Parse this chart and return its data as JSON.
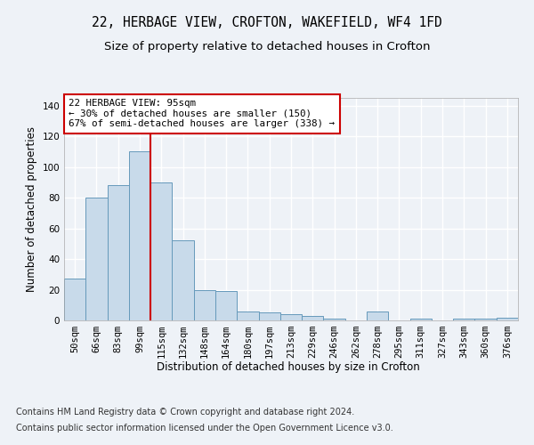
{
  "title_line1": "22, HERBAGE VIEW, CROFTON, WAKEFIELD, WF4 1FD",
  "title_line2": "Size of property relative to detached houses in Crofton",
  "xlabel": "Distribution of detached houses by size in Crofton",
  "ylabel": "Number of detached properties",
  "categories": [
    "50sqm",
    "66sqm",
    "83sqm",
    "99sqm",
    "115sqm",
    "132sqm",
    "148sqm",
    "164sqm",
    "180sqm",
    "197sqm",
    "213sqm",
    "229sqm",
    "246sqm",
    "262sqm",
    "278sqm",
    "295sqm",
    "311sqm",
    "327sqm",
    "343sqm",
    "360sqm",
    "376sqm"
  ],
  "values": [
    27,
    80,
    88,
    110,
    90,
    52,
    20,
    19,
    6,
    5,
    4,
    3,
    1,
    0,
    6,
    0,
    1,
    0,
    1,
    1,
    2
  ],
  "bar_color": "#c8daea",
  "bar_edge_color": "#6699bb",
  "vline_color": "#cc0000",
  "annotation_text": "22 HERBAGE VIEW: 95sqm\n← 30% of detached houses are smaller (150)\n67% of semi-detached houses are larger (338) →",
  "annotation_box_color": "#ffffff",
  "annotation_box_edge_color": "#cc0000",
  "ylim": [
    0,
    145
  ],
  "yticks": [
    0,
    20,
    40,
    60,
    80,
    100,
    120,
    140
  ],
  "footer_line1": "Contains HM Land Registry data © Crown copyright and database right 2024.",
  "footer_line2": "Contains public sector information licensed under the Open Government Licence v3.0.",
  "background_color": "#eef2f7",
  "plot_bg_color": "#eef2f7",
  "grid_color": "#ffffff",
  "title_fontsize": 10.5,
  "subtitle_fontsize": 9.5,
  "axis_label_fontsize": 8.5,
  "tick_fontsize": 7.5,
  "annotation_fontsize": 7.8,
  "footer_fontsize": 7.0,
  "vline_bin_index": 3
}
